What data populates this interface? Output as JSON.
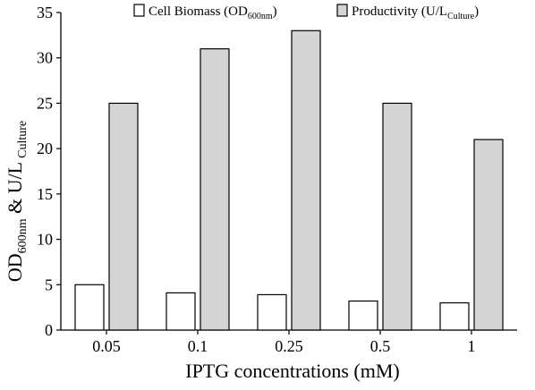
{
  "chart_data": {
    "type": "bar",
    "categories": [
      "0.05",
      "0.1",
      "0.25",
      "0.5",
      "1"
    ],
    "series": [
      {
        "name_main": "Cell Biomass",
        "name_unit": "OD",
        "name_sub": "600nm",
        "values": [
          5.0,
          4.1,
          3.9,
          3.2,
          3.0
        ],
        "color": "#ffffff"
      },
      {
        "name_main": "Productivity",
        "name_unit": "U/L",
        "name_sub": "Culture",
        "values": [
          25.0,
          31.0,
          33.0,
          25.0,
          21.0
        ],
        "color": "#d4d4d4"
      }
    ],
    "xlabel": "IPTG concentrations (mM)",
    "ylabel": {
      "part1": "OD",
      "sub1": "600nm",
      "part2": " & U/L",
      "sub2": "Culture"
    },
    "ylim": [
      0,
      35
    ],
    "yticks": [
      0,
      5,
      10,
      15,
      20,
      25,
      30,
      35
    ],
    "grid": false,
    "legend_position": "top"
  }
}
